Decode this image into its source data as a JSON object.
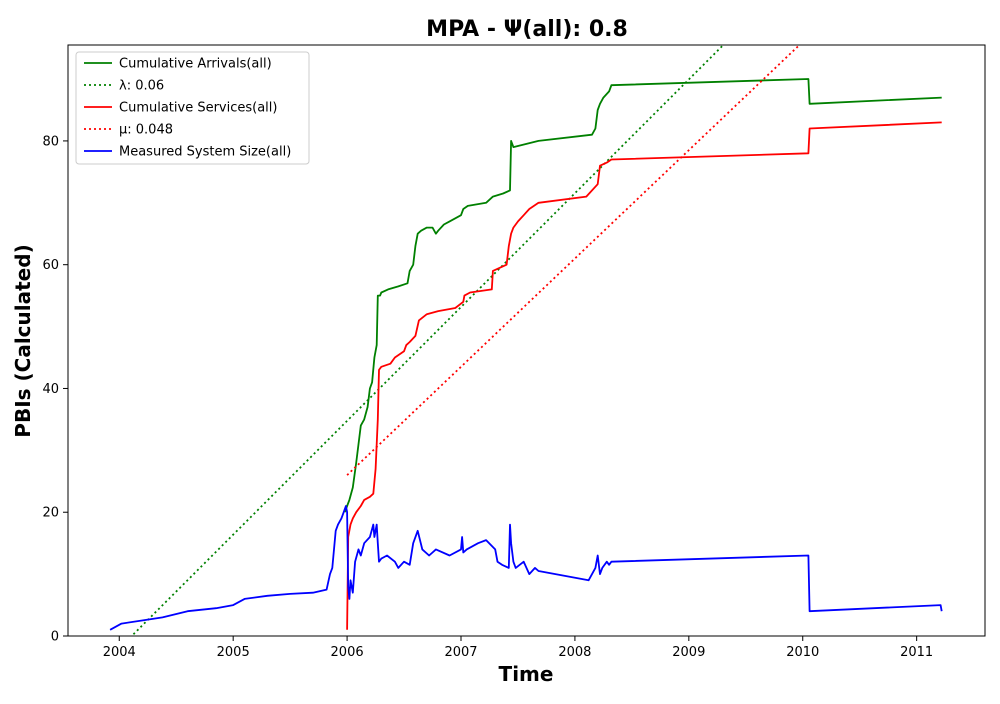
{
  "chart_data": {
    "type": "line",
    "title": "MPA -  Ψ(all): 0.8",
    "xlabel": "Time",
    "ylabel": "PBIs (Calculated)",
    "xlim": [
      2003.55,
      2011.6
    ],
    "ylim": [
      0,
      95.5
    ],
    "x_ticks": [
      2004,
      2005,
      2006,
      2007,
      2008,
      2009,
      2010,
      2011
    ],
    "y_ticks": [
      0,
      20,
      40,
      60,
      80
    ],
    "grid": false,
    "legend_position": "top-left",
    "series": [
      {
        "name": "Cumulative Arrivals(all)",
        "color": "#008000",
        "style": "solid",
        "x": [
          2005.98,
          2006.0,
          2006.02,
          2006.05,
          2006.08,
          2006.1,
          2006.12,
          2006.15,
          2006.18,
          2006.2,
          2006.22,
          2006.24,
          2006.26,
          2006.27,
          2006.29,
          2006.3,
          2006.36,
          2006.45,
          2006.53,
          2006.55,
          2006.58,
          2006.6,
          2006.62,
          2006.65,
          2006.7,
          2006.75,
          2006.78,
          2006.8,
          2006.85,
          2006.9,
          2007.0,
          2007.02,
          2007.06,
          2007.22,
          2007.28,
          2007.37,
          2007.43,
          2007.44,
          2007.46,
          2007.68,
          2008.15,
          2008.18,
          2008.2,
          2008.22,
          2008.25,
          2008.3,
          2008.32,
          2010.05,
          2010.06,
          2011.22
        ],
        "values": [
          20,
          21,
          22,
          24,
          28,
          31,
          34,
          35,
          37,
          40,
          41,
          45,
          47,
          55,
          55,
          55.5,
          56,
          56.5,
          57,
          59,
          60,
          63,
          65,
          65.5,
          66,
          66,
          65,
          65.5,
          66.5,
          67,
          68,
          69,
          69.5,
          70,
          71,
          71.5,
          72,
          80,
          79,
          80,
          81,
          82,
          85,
          86,
          87,
          88,
          89,
          90,
          86,
          87
        ]
      },
      {
        "name": "λ: 0.06",
        "color": "#008000",
        "style": "dotted",
        "x": [
          2004.0,
          2009.33
        ],
        "values": [
          -2,
          96
        ]
      },
      {
        "name": "Cumulative Services(all)",
        "color": "#ff0000",
        "style": "solid",
        "x": [
          2006.0,
          2006.01,
          2006.03,
          2006.05,
          2006.08,
          2006.12,
          2006.15,
          2006.2,
          2006.23,
          2006.25,
          2006.27,
          2006.28,
          2006.3,
          2006.38,
          2006.42,
          2006.5,
          2006.52,
          2006.55,
          2006.6,
          2006.63,
          2006.7,
          2006.8,
          2006.95,
          2007.02,
          2007.03,
          2007.08,
          2007.27,
          2007.28,
          2007.4,
          2007.42,
          2007.44,
          2007.46,
          2007.5,
          2007.55,
          2007.6,
          2007.68,
          2008.1,
          2008.2,
          2008.22,
          2008.28,
          2008.32,
          2010.05,
          2010.06,
          2011.22
        ],
        "values": [
          1,
          16,
          18,
          19,
          20,
          21,
          22,
          22.5,
          23,
          27,
          35,
          43,
          43.5,
          44,
          45,
          46,
          47,
          47.5,
          48.5,
          51,
          52,
          52.5,
          53,
          54,
          55,
          55.5,
          56,
          59,
          60,
          63,
          65,
          66,
          67,
          68,
          69,
          70,
          71,
          73,
          76,
          76.5,
          77,
          78,
          82,
          83
        ]
      },
      {
        "name": "μ: 0.048",
        "color": "#ff0000",
        "style": "dotted",
        "x": [
          2006.0,
          2010.0
        ],
        "values": [
          26,
          96
        ]
      },
      {
        "name": "Measured System Size(all)",
        "color": "#0000ff",
        "style": "solid",
        "x": [
          2003.92,
          2004.02,
          2004.2,
          2004.38,
          2004.6,
          2004.85,
          2005.0,
          2005.1,
          2005.3,
          2005.5,
          2005.7,
          2005.82,
          2005.85,
          2005.87,
          2005.9,
          2005.92,
          2005.95,
          2005.97,
          2005.99,
          2006.0,
          2006.01,
          2006.02,
          2006.03,
          2006.05,
          2006.07,
          2006.1,
          2006.12,
          2006.15,
          2006.2,
          2006.23,
          2006.24,
          2006.26,
          2006.27,
          2006.28,
          2006.3,
          2006.35,
          2006.42,
          2006.45,
          2006.5,
          2006.55,
          2006.58,
          2006.62,
          2006.66,
          2006.72,
          2006.75,
          2006.78,
          2006.9,
          2007.0,
          2007.01,
          2007.02,
          2007.05,
          2007.1,
          2007.15,
          2007.22,
          2007.3,
          2007.32,
          2007.36,
          2007.42,
          2007.43,
          2007.44,
          2007.46,
          2007.48,
          2007.55,
          2007.6,
          2007.65,
          2007.68,
          2008.12,
          2008.18,
          2008.2,
          2008.22,
          2008.24,
          2008.28,
          2008.3,
          2008.32,
          2010.05,
          2010.06,
          2011.21,
          2011.22
        ],
        "values": [
          1,
          2,
          2.5,
          3,
          4,
          4.5,
          5,
          6,
          6.5,
          6.8,
          7,
          7.5,
          10,
          11,
          17,
          18,
          19,
          20,
          21,
          20,
          8,
          6,
          9,
          7,
          12,
          14,
          13,
          15,
          16,
          18,
          16,
          18,
          15,
          12,
          12.5,
          13,
          12,
          11,
          12,
          11.5,
          15,
          17,
          14,
          13,
          13.5,
          14,
          13,
          14,
          16,
          13.5,
          14,
          14.5,
          15,
          15.5,
          14,
          12,
          11.5,
          11,
          18,
          15,
          12,
          11,
          12,
          10,
          11,
          10.5,
          9,
          11,
          13,
          10,
          11,
          12,
          11.5,
          12,
          13,
          4,
          5,
          4
        ]
      }
    ]
  }
}
